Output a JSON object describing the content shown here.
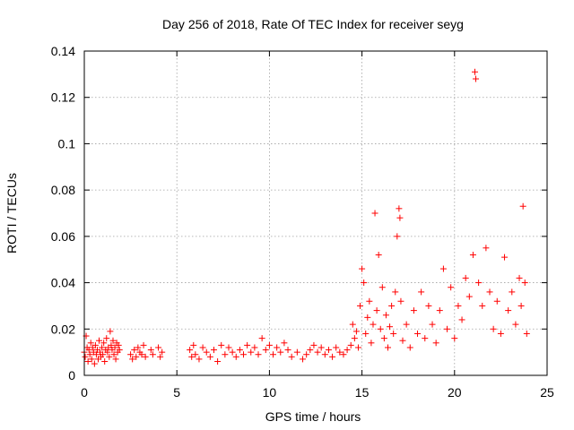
{
  "chart_data": {
    "type": "scatter",
    "title": "Day 256 of 2018, Rate Of TEC Index for receiver seyg",
    "xlabel": "GPS time / hours",
    "ylabel": "ROTI / TECUs",
    "xlim": [
      0,
      25
    ],
    "ylim": [
      0,
      0.14
    ],
    "xticks": [
      0,
      5,
      10,
      15,
      20,
      25
    ],
    "xtick_labels": [
      "0",
      "5",
      "10",
      "15",
      "20",
      "25"
    ],
    "yticks": [
      0,
      0.02,
      0.04,
      0.06,
      0.08,
      0.1,
      0.12,
      0.14
    ],
    "ytick_labels": [
      "0",
      "0.02",
      "0.04",
      "0.06",
      "0.08",
      "0.1",
      "0.12",
      "0.14"
    ],
    "grid": true,
    "marker": "+",
    "color": "#ff0000",
    "series": [
      {
        "name": "ROTI",
        "points": [
          [
            0.0,
            0.01
          ],
          [
            0.05,
            0.008
          ],
          [
            0.1,
            0.017
          ],
          [
            0.15,
            0.012
          ],
          [
            0.2,
            0.006
          ],
          [
            0.25,
            0.011
          ],
          [
            0.3,
            0.009
          ],
          [
            0.35,
            0.014
          ],
          [
            0.4,
            0.007
          ],
          [
            0.45,
            0.012
          ],
          [
            0.5,
            0.01
          ],
          [
            0.55,
            0.005
          ],
          [
            0.6,
            0.013
          ],
          [
            0.65,
            0.009
          ],
          [
            0.7,
            0.011
          ],
          [
            0.75,
            0.007
          ],
          [
            0.8,
            0.015
          ],
          [
            0.85,
            0.01
          ],
          [
            0.9,
            0.008
          ],
          [
            0.95,
            0.012
          ],
          [
            1.0,
            0.009
          ],
          [
            1.05,
            0.014
          ],
          [
            1.1,
            0.006
          ],
          [
            1.15,
            0.011
          ],
          [
            1.2,
            0.016
          ],
          [
            1.25,
            0.01
          ],
          [
            1.3,
            0.012
          ],
          [
            1.35,
            0.008
          ],
          [
            1.4,
            0.019
          ],
          [
            1.45,
            0.013
          ],
          [
            1.5,
            0.011
          ],
          [
            1.55,
            0.015
          ],
          [
            1.6,
            0.009
          ],
          [
            1.65,
            0.012
          ],
          [
            1.7,
            0.007
          ],
          [
            1.75,
            0.014
          ],
          [
            1.8,
            0.01
          ],
          [
            1.85,
            0.013
          ],
          [
            1.9,
            0.011
          ],
          [
            2.5,
            0.009
          ],
          [
            2.6,
            0.007
          ],
          [
            2.7,
            0.011
          ],
          [
            2.8,
            0.008
          ],
          [
            2.9,
            0.012
          ],
          [
            3.0,
            0.01
          ],
          [
            3.1,
            0.009
          ],
          [
            3.2,
            0.013
          ],
          [
            3.3,
            0.008
          ],
          [
            3.6,
            0.011
          ],
          [
            3.7,
            0.009
          ],
          [
            4.0,
            0.012
          ],
          [
            4.1,
            0.008
          ],
          [
            4.2,
            0.01
          ],
          [
            5.7,
            0.011
          ],
          [
            5.8,
            0.008
          ],
          [
            5.9,
            0.013
          ],
          [
            6.0,
            0.009
          ],
          [
            6.2,
            0.007
          ],
          [
            6.4,
            0.012
          ],
          [
            6.6,
            0.01
          ],
          [
            6.8,
            0.008
          ],
          [
            7.0,
            0.011
          ],
          [
            7.2,
            0.006
          ],
          [
            7.4,
            0.013
          ],
          [
            7.6,
            0.009
          ],
          [
            7.8,
            0.012
          ],
          [
            8.0,
            0.01
          ],
          [
            8.2,
            0.008
          ],
          [
            8.4,
            0.011
          ],
          [
            8.6,
            0.009
          ],
          [
            8.8,
            0.013
          ],
          [
            9.0,
            0.01
          ],
          [
            9.2,
            0.012
          ],
          [
            9.4,
            0.009
          ],
          [
            9.6,
            0.016
          ],
          [
            9.8,
            0.011
          ],
          [
            10.0,
            0.013
          ],
          [
            10.2,
            0.009
          ],
          [
            10.4,
            0.012
          ],
          [
            10.6,
            0.01
          ],
          [
            10.8,
            0.014
          ],
          [
            11.0,
            0.011
          ],
          [
            11.2,
            0.008
          ],
          [
            11.5,
            0.01
          ],
          [
            11.8,
            0.007
          ],
          [
            12.0,
            0.009
          ],
          [
            12.2,
            0.011
          ],
          [
            12.4,
            0.013
          ],
          [
            12.6,
            0.01
          ],
          [
            12.8,
            0.012
          ],
          [
            13.0,
            0.009
          ],
          [
            13.2,
            0.011
          ],
          [
            13.4,
            0.008
          ],
          [
            13.6,
            0.012
          ],
          [
            13.8,
            0.01
          ],
          [
            14.0,
            0.009
          ],
          [
            14.2,
            0.011
          ],
          [
            14.4,
            0.013
          ],
          [
            14.5,
            0.022
          ],
          [
            14.6,
            0.016
          ],
          [
            14.7,
            0.019
          ],
          [
            14.8,
            0.012
          ],
          [
            14.9,
            0.03
          ],
          [
            15.0,
            0.046
          ],
          [
            15.1,
            0.04
          ],
          [
            15.2,
            0.018
          ],
          [
            15.3,
            0.025
          ],
          [
            15.4,
            0.032
          ],
          [
            15.5,
            0.014
          ],
          [
            15.6,
            0.022
          ],
          [
            15.7,
            0.07
          ],
          [
            15.8,
            0.028
          ],
          [
            15.9,
            0.052
          ],
          [
            16.0,
            0.02
          ],
          [
            16.1,
            0.038
          ],
          [
            16.2,
            0.016
          ],
          [
            16.3,
            0.026
          ],
          [
            16.4,
            0.012
          ],
          [
            16.5,
            0.021
          ],
          [
            16.6,
            0.03
          ],
          [
            16.7,
            0.018
          ],
          [
            16.8,
            0.036
          ],
          [
            16.9,
            0.06
          ],
          [
            17.0,
            0.072
          ],
          [
            17.05,
            0.068
          ],
          [
            17.1,
            0.032
          ],
          [
            17.2,
            0.015
          ],
          [
            17.4,
            0.022
          ],
          [
            17.6,
            0.012
          ],
          [
            17.8,
            0.028
          ],
          [
            18.0,
            0.018
          ],
          [
            18.2,
            0.036
          ],
          [
            18.4,
            0.016
          ],
          [
            18.6,
            0.03
          ],
          [
            18.8,
            0.022
          ],
          [
            19.0,
            0.014
          ],
          [
            19.2,
            0.028
          ],
          [
            19.4,
            0.046
          ],
          [
            19.6,
            0.02
          ],
          [
            19.8,
            0.038
          ],
          [
            20.0,
            0.016
          ],
          [
            20.2,
            0.03
          ],
          [
            20.4,
            0.024
          ],
          [
            20.6,
            0.042
          ],
          [
            20.8,
            0.034
          ],
          [
            21.0,
            0.052
          ],
          [
            21.1,
            0.131
          ],
          [
            21.15,
            0.128
          ],
          [
            21.3,
            0.04
          ],
          [
            21.5,
            0.03
          ],
          [
            21.7,
            0.055
          ],
          [
            21.9,
            0.036
          ],
          [
            22.1,
            0.02
          ],
          [
            22.3,
            0.032
          ],
          [
            22.5,
            0.018
          ],
          [
            22.7,
            0.051
          ],
          [
            22.9,
            0.028
          ],
          [
            23.1,
            0.036
          ],
          [
            23.3,
            0.022
          ],
          [
            23.5,
            0.042
          ],
          [
            23.6,
            0.03
          ],
          [
            23.7,
            0.073
          ],
          [
            23.8,
            0.04
          ],
          [
            23.9,
            0.018
          ]
        ]
      }
    ]
  }
}
